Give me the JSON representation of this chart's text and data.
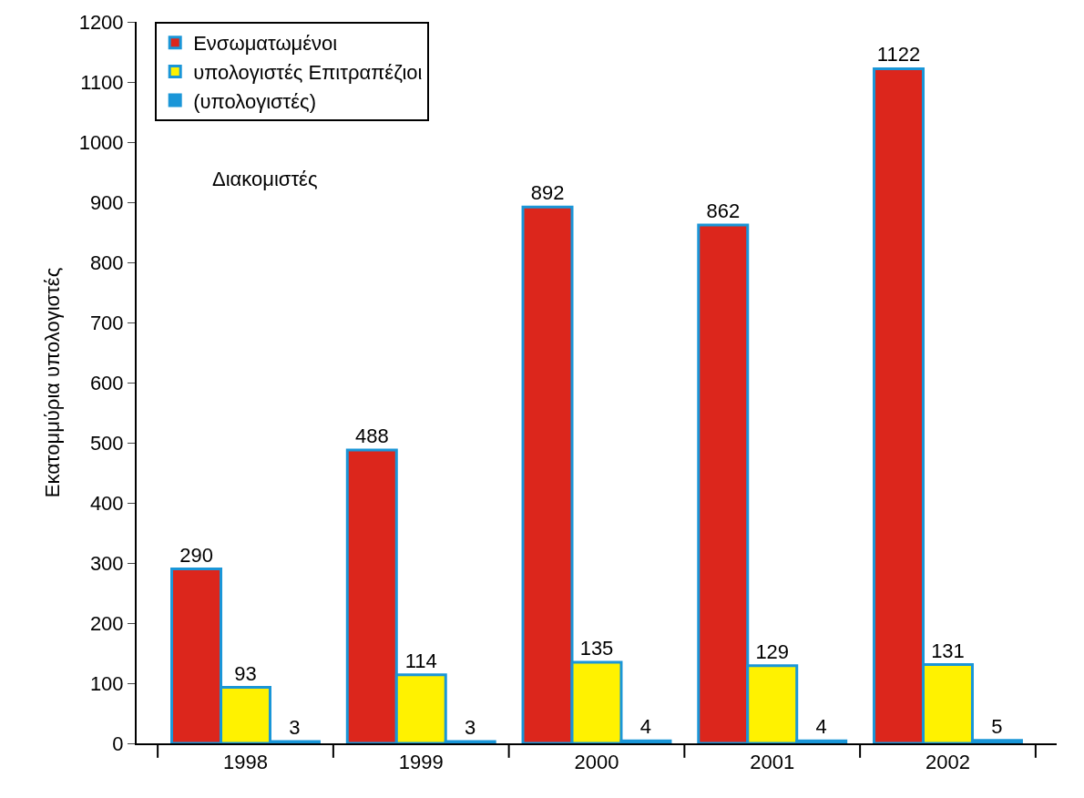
{
  "chart_data": {
    "type": "bar",
    "ylabel": "Εκατομμύρια υπολογιστές",
    "categories": [
      "1998",
      "1999",
      "2000",
      "2001",
      "2002"
    ],
    "series": [
      {
        "name": "Ενσωματωμένοι",
        "color": "#dc261c",
        "values": [
          290,
          488,
          892,
          862,
          1122
        ]
      },
      {
        "name": "υπολογιστές Επιτραπέζιοι",
        "color": "#fff200",
        "values": [
          93,
          114,
          135,
          129,
          131
        ]
      },
      {
        "name": "(υπολογιστές)",
        "color": "#1a96d8",
        "values": [
          3,
          3,
          4,
          4,
          5
        ]
      }
    ],
    "annotations": [
      "Διακομιστές"
    ],
    "ylim": [
      0,
      1200
    ],
    "yticks": [
      0,
      100,
      200,
      300,
      400,
      500,
      600,
      700,
      800,
      900,
      1000,
      1100,
      1200
    ],
    "data_labels": true,
    "legend": "top left"
  }
}
